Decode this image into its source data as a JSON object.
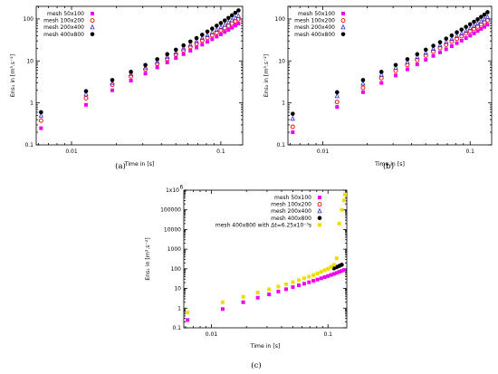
{
  "chart_data": [
    {
      "type": "scatter",
      "caption": "(a)",
      "xlabel": "Time in [s]",
      "ylabel": "Ens₁ in [m³.s⁻²]",
      "xscale": "log",
      "yscale": "log",
      "xlim": [
        0.0058,
        0.14
      ],
      "ylim": [
        0.1,
        200
      ],
      "xticks": [
        {
          "v": 0.01,
          "label": "0.01"
        },
        {
          "v": 0.1,
          "label": "0.1"
        }
      ],
      "yticks": [
        {
          "v": 0.1,
          "label": "0.1"
        },
        {
          "v": 1,
          "label": "1"
        },
        {
          "v": 10,
          "label": "10"
        },
        {
          "v": 100,
          "label": "100"
        }
      ],
      "legend_position": "top-left",
      "series": [
        {
          "name": "mesh 50x100",
          "marker": "square",
          "color": "#ee00ee",
          "x": [
            0.00625,
            0.0125,
            0.01875,
            0.025,
            0.03125,
            0.0375,
            0.04375,
            0.05,
            0.05625,
            0.0625,
            0.06875,
            0.075,
            0.08125,
            0.0875,
            0.09375,
            0.1,
            0.10625,
            0.1125,
            0.11875,
            0.125,
            0.13125
          ],
          "y": [
            0.25,
            0.9,
            2.0,
            3.4,
            5.0,
            7.0,
            9.2,
            11.7,
            14.5,
            17.5,
            20.8,
            24.5,
            28.5,
            33,
            38,
            43,
            49,
            55,
            62,
            70,
            78
          ]
        },
        {
          "name": "mesh 100x200",
          "marker": "circle-open",
          "color": "#ff0000",
          "x": [
            0.00625,
            0.0125,
            0.01875,
            0.025,
            0.03125,
            0.0375,
            0.04375,
            0.05,
            0.05625,
            0.0625,
            0.06875,
            0.075,
            0.08125,
            0.0875,
            0.09375,
            0.1,
            0.10625,
            0.1125,
            0.11875,
            0.125,
            0.13125
          ],
          "y": [
            0.38,
            1.3,
            2.7,
            4.3,
            6.3,
            8.6,
            11.2,
            14.3,
            17.8,
            21.5,
            25.8,
            30.5,
            35.5,
            41,
            47,
            54,
            61,
            69,
            78,
            88,
            99
          ]
        },
        {
          "name": "mesh 200x400",
          "marker": "triangle-open",
          "color": "#3333cc",
          "x": [
            0.00625,
            0.0125,
            0.01875,
            0.025,
            0.03125,
            0.0375,
            0.04375,
            0.05,
            0.05625,
            0.0625,
            0.06875,
            0.075,
            0.08125,
            0.0875,
            0.09375,
            0.1,
            0.10625,
            0.1125,
            0.11875,
            0.125,
            0.13125
          ],
          "y": [
            0.5,
            1.6,
            3.0,
            4.8,
            7.0,
            9.6,
            12.6,
            16,
            20,
            24.5,
            29.5,
            35,
            41,
            48,
            55,
            63,
            72,
            82,
            93,
            105,
            118
          ]
        },
        {
          "name": "mesh 400x800",
          "marker": "circle-filled",
          "color": "#000000",
          "x": [
            0.00625,
            0.0125,
            0.01875,
            0.025,
            0.03125,
            0.0375,
            0.04375,
            0.05,
            0.05625,
            0.0625,
            0.06875,
            0.075,
            0.08125,
            0.0875,
            0.09375,
            0.1,
            0.10625,
            0.1125,
            0.11875,
            0.125,
            0.13125
          ],
          "y": [
            0.6,
            1.9,
            3.5,
            5.5,
            8.0,
            11,
            14.5,
            18.5,
            23.5,
            29,
            35,
            42,
            50,
            59,
            69,
            80,
            92,
            106,
            122,
            140,
            160
          ]
        }
      ]
    },
    {
      "type": "scatter",
      "caption": "(b)",
      "xlabel": "Time in [s]",
      "ylabel": "Ens₂ in [m³.s⁻²]",
      "xscale": "log",
      "yscale": "log",
      "xlim": [
        0.0058,
        0.14
      ],
      "ylim": [
        0.1,
        200
      ],
      "xticks": [
        {
          "v": 0.01,
          "label": "0.01"
        },
        {
          "v": 0.1,
          "label": "0.1"
        }
      ],
      "yticks": [
        {
          "v": 0.1,
          "label": "0.1"
        },
        {
          "v": 1,
          "label": "1"
        },
        {
          "v": 10,
          "label": "10"
        },
        {
          "v": 100,
          "label": "100"
        }
      ],
      "legend_position": "top-left",
      "series": [
        {
          "name": "mesh 50x100",
          "marker": "square",
          "color": "#ee00ee",
          "x": [
            0.00625,
            0.0125,
            0.01875,
            0.025,
            0.03125,
            0.0375,
            0.04375,
            0.05,
            0.05625,
            0.0625,
            0.06875,
            0.075,
            0.08125,
            0.0875,
            0.09375,
            0.1,
            0.10625,
            0.1125,
            0.11875,
            0.125,
            0.13125
          ],
          "y": [
            0.2,
            0.8,
            1.8,
            3.0,
            4.5,
            6.3,
            8.3,
            10.6,
            13.2,
            16,
            19,
            22.5,
            26.5,
            30.5,
            35,
            40,
            45.5,
            51.5,
            58,
            65,
            73
          ]
        },
        {
          "name": "mesh 100x200",
          "marker": "circle-open",
          "color": "#ff0000",
          "x": [
            0.00625,
            0.0125,
            0.01875,
            0.025,
            0.03125,
            0.0375,
            0.04375,
            0.05,
            0.05625,
            0.0625,
            0.06875,
            0.075,
            0.08125,
            0.0875,
            0.09375,
            0.1,
            0.10625,
            0.1125,
            0.11875,
            0.125,
            0.13125
          ],
          "y": [
            0.27,
            1.05,
            2.3,
            3.9,
            5.8,
            8.0,
            10.5,
            13.4,
            16.7,
            20.3,
            24.3,
            28.8,
            33.7,
            39,
            45,
            51,
            58,
            66,
            74,
            83,
            93
          ]
        },
        {
          "name": "mesh 200x400",
          "marker": "triangle-open",
          "color": "#3333cc",
          "x": [
            0.00625,
            0.0125,
            0.01875,
            0.025,
            0.03125,
            0.0375,
            0.04375,
            0.05,
            0.05625,
            0.0625,
            0.06875,
            0.075,
            0.08125,
            0.0875,
            0.09375,
            0.1,
            0.10625,
            0.1125,
            0.11875,
            0.125,
            0.13125
          ],
          "y": [
            0.42,
            1.45,
            2.9,
            4.7,
            6.9,
            9.4,
            12.3,
            15.6,
            19.4,
            23.6,
            28.2,
            33.4,
            39,
            45,
            52,
            60,
            68,
            77,
            87,
            98,
            110
          ]
        },
        {
          "name": "mesh 400x800",
          "marker": "circle-filled",
          "color": "#000000",
          "x": [
            0.00625,
            0.0125,
            0.01875,
            0.025,
            0.03125,
            0.0375,
            0.04375,
            0.05,
            0.05625,
            0.0625,
            0.06875,
            0.075,
            0.08125,
            0.0875,
            0.09375,
            0.1,
            0.10625,
            0.1125,
            0.11875,
            0.125,
            0.13125
          ],
          "y": [
            0.55,
            1.8,
            3.5,
            5.5,
            8.0,
            11,
            14.5,
            18.5,
            23,
            28,
            34,
            40.5,
            48,
            56,
            65,
            75,
            86,
            98,
            112,
            127,
            145
          ]
        }
      ]
    },
    {
      "type": "scatter",
      "caption": "(c)",
      "xlabel": "Time in [s]",
      "ylabel": "Ens₁ in [m³.s⁻²]",
      "xscale": "log",
      "yscale": "log",
      "xlim": [
        0.0058,
        0.145
      ],
      "ylim": [
        0.1,
        1000000
      ],
      "xticks": [
        {
          "v": 0.01,
          "label": "0.01"
        },
        {
          "v": 0.1,
          "label": "0.1"
        }
      ],
      "yticks": [
        {
          "v": 0.1,
          "label": "0.1"
        },
        {
          "v": 1,
          "label": "1"
        },
        {
          "v": 10,
          "label": "10"
        },
        {
          "v": 100,
          "label": "100"
        },
        {
          "v": 1000,
          "label": "1000"
        },
        {
          "v": 10000,
          "label": "10000"
        },
        {
          "v": 100000,
          "label": "100000"
        }
      ],
      "ytick_top": {
        "v": 1000000,
        "base": "1x10",
        "exp": "6"
      },
      "legend_position": "top-right",
      "series": [
        {
          "name": "mesh 50x100",
          "marker": "square",
          "color": "#ee00ee",
          "x": [
            0.00625,
            0.0125,
            0.01875,
            0.025,
            0.03125,
            0.0375,
            0.04375,
            0.05,
            0.05625,
            0.0625,
            0.06875,
            0.075,
            0.08125,
            0.0875,
            0.09375,
            0.1,
            0.10625,
            0.1125,
            0.11875,
            0.125,
            0.13125,
            0.1375
          ],
          "y": [
            0.25,
            0.9,
            2.0,
            3.4,
            5.0,
            7.0,
            9.2,
            11.7,
            14.5,
            17.5,
            20.8,
            24.5,
            28.5,
            33,
            38,
            43,
            49,
            55,
            62,
            70,
            78,
            87
          ]
        },
        {
          "name": "mesh 100x200",
          "marker": "circle-open",
          "color": "#ff0000",
          "x": [],
          "y": []
        },
        {
          "name": "mesh 200x400",
          "marker": "triangle-open",
          "color": "#3333cc",
          "x": [],
          "y": []
        },
        {
          "name": "mesh 400x800",
          "marker": "circle-filled",
          "color": "#000000",
          "x": [
            0.1125,
            0.11875,
            0.125,
            0.13125
          ],
          "y": [
            106,
            122,
            140,
            160
          ]
        },
        {
          "name": "mesh 400x800 with Δt=6.25x10⁻⁵s",
          "marker": "square",
          "color": "#eedd00",
          "x": [
            0.00625,
            0.0125,
            0.01875,
            0.025,
            0.03125,
            0.0375,
            0.04375,
            0.05,
            0.05625,
            0.0625,
            0.06875,
            0.075,
            0.08125,
            0.0875,
            0.09375,
            0.1,
            0.10625,
            0.1125,
            0.11875,
            0.125,
            0.13125,
            0.1375,
            0.14
          ],
          "y": [
            0.6,
            2.0,
            3.8,
            6.2,
            9.0,
            12.5,
            16.5,
            21,
            26.5,
            33,
            40,
            48,
            58,
            70,
            85,
            100,
            125,
            160,
            340,
            20000,
            100000,
            300000,
            600000
          ]
        }
      ]
    }
  ]
}
